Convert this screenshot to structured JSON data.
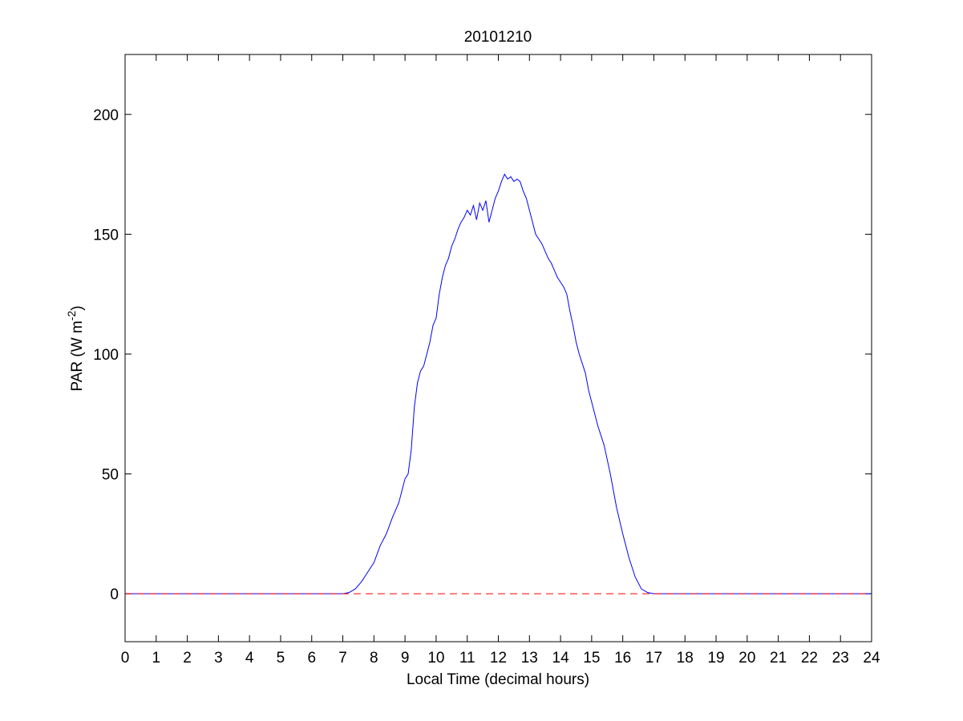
{
  "chart_data": {
    "type": "line",
    "title": "20101210",
    "xlabel": "Local Time (decimal hours)",
    "ylabel_main": "PAR (W m",
    "ylabel_sup": "-2",
    "ylabel_close": ")",
    "xlim": [
      0,
      24
    ],
    "ylim": [
      -20,
      225
    ],
    "xticks": [
      "0",
      "1",
      "2",
      "3",
      "4",
      "5",
      "6",
      "7",
      "8",
      "9",
      "10",
      "11",
      "12",
      "13",
      "14",
      "15",
      "16",
      "17",
      "18",
      "19",
      "20",
      "21",
      "22",
      "23",
      "24"
    ],
    "yticks": [
      "0",
      "50",
      "100",
      "150",
      "200"
    ],
    "grid": false,
    "series": [
      {
        "color": "#0000ff",
        "style": "solid",
        "x": [
          0,
          7.0,
          7.2,
          7.4,
          7.6,
          7.8,
          8.0,
          8.2,
          8.4,
          8.6,
          8.8,
          9.0,
          9.1,
          9.2,
          9.3,
          9.4,
          9.5,
          9.6,
          9.7,
          9.8,
          9.9,
          10.0,
          10.1,
          10.2,
          10.3,
          10.4,
          10.5,
          10.6,
          10.7,
          10.8,
          10.9,
          11.0,
          11.1,
          11.2,
          11.3,
          11.4,
          11.5,
          11.6,
          11.7,
          11.8,
          11.9,
          12.0,
          12.1,
          12.2,
          12.3,
          12.4,
          12.5,
          12.6,
          12.7,
          12.8,
          12.9,
          13.0,
          13.1,
          13.2,
          13.3,
          13.4,
          13.5,
          13.6,
          13.7,
          13.8,
          13.9,
          14.0,
          14.1,
          14.2,
          14.3,
          14.4,
          14.5,
          14.6,
          14.7,
          14.8,
          14.9,
          15.0,
          15.2,
          15.4,
          15.6,
          15.8,
          16.0,
          16.2,
          16.4,
          16.6,
          16.8,
          17.0,
          17.2,
          24
        ],
        "y": [
          0,
          0,
          0.5,
          2,
          5,
          9,
          13,
          20,
          25,
          32,
          38,
          48,
          50,
          60,
          78,
          88,
          93,
          95,
          100,
          105,
          112,
          115,
          125,
          132,
          137,
          140,
          145,
          148,
          152,
          155,
          157,
          160,
          158,
          162,
          156,
          163,
          160,
          164,
          155,
          160,
          165,
          168,
          172,
          175,
          173,
          174,
          172,
          173,
          172,
          168,
          165,
          160,
          155,
          150,
          148,
          146,
          143,
          140,
          138,
          135,
          132,
          130,
          128,
          125,
          118,
          112,
          105,
          100,
          96,
          92,
          85,
          80,
          70,
          62,
          50,
          36,
          25,
          15,
          7,
          2,
          0.5,
          0,
          0,
          0
        ]
      },
      {
        "color": "#ff0000",
        "style": "dashed",
        "x": [
          0,
          24
        ],
        "y": [
          0,
          0
        ]
      }
    ]
  }
}
